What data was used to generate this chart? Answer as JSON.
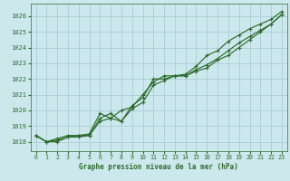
{
  "title": "Graphe pression niveau de la mer (hPa)",
  "background_color": "#cce8ed",
  "grid_color": "#aacdd5",
  "line_color": "#2d6b2d",
  "xlim": [
    -0.5,
    23.5
  ],
  "ylim": [
    1017.4,
    1026.8
  ],
  "yticks": [
    1018,
    1019,
    1020,
    1021,
    1022,
    1023,
    1024,
    1025,
    1026
  ],
  "xticks": [
    0,
    1,
    2,
    3,
    4,
    5,
    6,
    7,
    8,
    9,
    10,
    11,
    12,
    13,
    14,
    15,
    16,
    17,
    18,
    19,
    20,
    21,
    22,
    23
  ],
  "series1": [
    1018.4,
    1018.0,
    1018.0,
    1018.3,
    1018.3,
    1018.4,
    1019.5,
    1019.8,
    1019.3,
    1020.1,
    1020.5,
    1021.6,
    1021.9,
    1022.2,
    1022.2,
    1022.6,
    1022.9,
    1023.3,
    1023.8,
    1024.3,
    1024.7,
    1025.1,
    1025.5,
    1026.1
  ],
  "series2": [
    1018.4,
    1018.0,
    1018.1,
    1018.3,
    1018.4,
    1018.4,
    1019.3,
    1019.5,
    1020.0,
    1020.2,
    1021.0,
    1021.8,
    1022.2,
    1022.2,
    1022.3,
    1022.8,
    1023.5,
    1023.8,
    1024.4,
    1024.8,
    1025.2,
    1025.5,
    1025.8,
    1026.3
  ],
  "series3": [
    1018.4,
    1018.0,
    1018.2,
    1018.4,
    1018.4,
    1018.5,
    1019.8,
    1019.5,
    1019.3,
    1020.3,
    1020.8,
    1022.0,
    1022.0,
    1022.2,
    1022.2,
    1022.5,
    1022.7,
    1023.2,
    1023.5,
    1024.0,
    1024.5,
    1025.0,
    1025.5,
    1026.1
  ],
  "ylabel_fontsize": 5.0,
  "xlabel_fontsize": 5.5,
  "tick_labelsize": 5.0,
  "linewidth": 0.85,
  "markersize": 3.0
}
